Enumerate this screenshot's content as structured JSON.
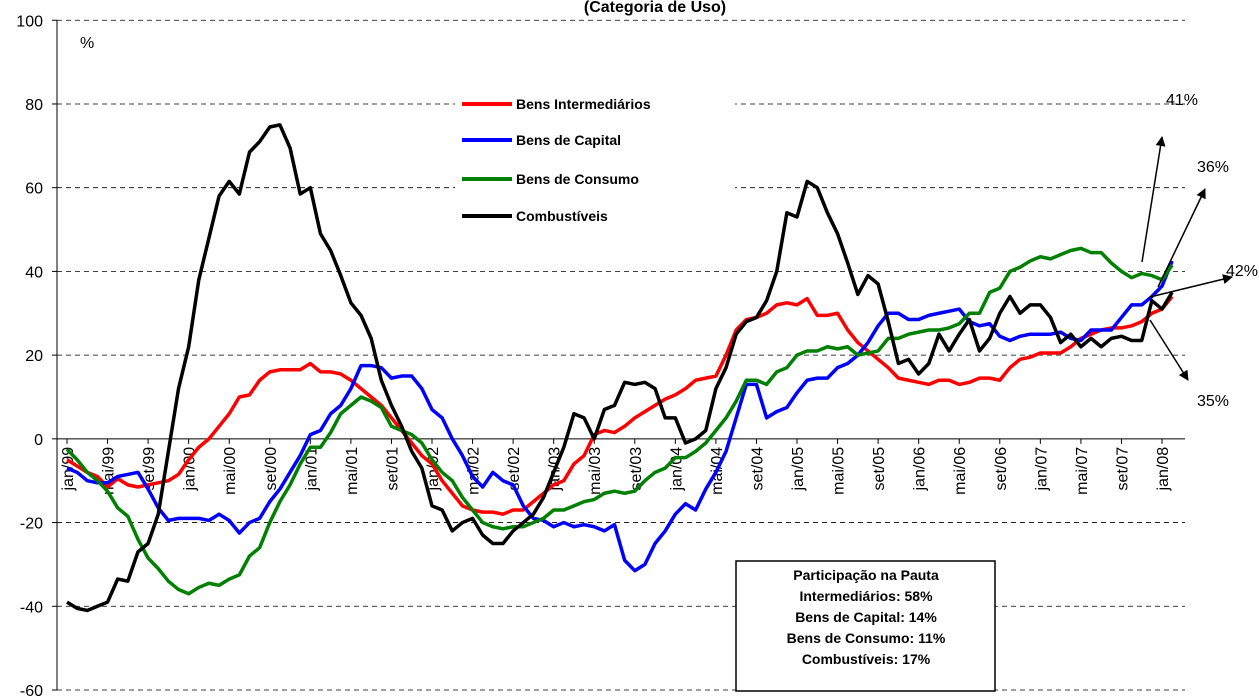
{
  "chart_data": {
    "type": "line",
    "title": "(Categoria de Uso)",
    "y_label": "%",
    "categories": [
      "jan/99",
      null,
      null,
      null,
      "mai/99",
      null,
      null,
      null,
      "set/99",
      null,
      null,
      null,
      "jan/00",
      null,
      null,
      null,
      "mai/00",
      null,
      null,
      null,
      "set/00",
      null,
      null,
      null,
      "jan/01",
      null,
      null,
      null,
      "mai/01",
      null,
      null,
      null,
      "set/01",
      null,
      null,
      null,
      "jan/02",
      null,
      null,
      null,
      "mai/02",
      null,
      null,
      null,
      "set/02",
      null,
      null,
      null,
      "jan/03",
      null,
      null,
      null,
      "mai/03",
      null,
      null,
      null,
      "set/03",
      null,
      null,
      null,
      "jan/04",
      null,
      null,
      null,
      "mai/04",
      null,
      null,
      null,
      "set/04",
      null,
      null,
      null,
      "jan/05",
      null,
      null,
      null,
      "mai/05",
      null,
      null,
      null,
      "set/05",
      null,
      null,
      null,
      "jan/06",
      null,
      null,
      null,
      "mai/06",
      null,
      null,
      null,
      "set/06",
      null,
      null,
      null,
      "jan/07",
      null,
      null,
      null,
      "mai/07",
      null,
      null,
      null,
      "set/07",
      null,
      null,
      null,
      "jan/08",
      null
    ],
    "series": [
      {
        "name": "Bens Intermediários",
        "color": "#ff0000",
        "values": [
          -5,
          -6.5,
          -8,
          -9,
          -11.5,
          -9.5,
          -11,
          -11.5,
          -11,
          -10.5,
          -10,
          -8.5,
          -5,
          -2,
          0,
          3,
          6,
          10,
          10.5,
          14,
          16,
          16.5,
          16.5,
          16.5,
          18,
          16,
          16,
          15.5,
          14,
          12,
          10,
          8,
          5,
          2,
          -1,
          -4,
          -6,
          -10,
          -13,
          -16,
          -17,
          -17.5,
          -17.5,
          -18,
          -17,
          -17,
          -15,
          -13,
          -11,
          -10,
          -6,
          -4,
          1,
          2,
          1.5,
          3,
          5,
          6.5,
          8,
          9.5,
          10.5,
          12,
          14,
          14.5,
          15,
          20,
          26,
          28.5,
          29,
          30,
          32,
          32.5,
          32,
          33.5,
          29.5,
          29.5,
          30,
          26,
          23,
          21,
          19,
          17,
          14.5,
          14,
          13.5,
          13,
          14,
          14,
          13,
          13.5,
          14.5,
          14.5,
          14,
          17,
          19,
          19.5,
          20.5,
          20.5,
          20.5,
          22,
          24,
          25,
          26,
          26.5,
          26.5,
          27,
          28,
          30,
          31,
          34
        ]
      },
      {
        "name": "Bens de Capital",
        "color": "#0000ff",
        "values": [
          -7,
          -8,
          -10,
          -10.5,
          -10.5,
          -9,
          -8.5,
          -8,
          -12,
          -16.5,
          -19.5,
          -19,
          -19,
          -19,
          -19.5,
          -18,
          -19.5,
          -22.5,
          -20,
          -19,
          -15,
          -12,
          -8,
          -4,
          1,
          2,
          6,
          8,
          12,
          17.5,
          17.5,
          17,
          14.5,
          15,
          15,
          12,
          7,
          5,
          0,
          -4,
          -9,
          -11.5,
          -8,
          -10,
          -11,
          -16,
          -19,
          -19.5,
          -21,
          -20,
          -21,
          -20.5,
          -21,
          -22,
          -20.5,
          -29,
          -31.5,
          -30,
          -25,
          -22,
          -18,
          -15.5,
          -17,
          -12,
          -8,
          -3,
          5,
          13,
          13,
          5,
          6.5,
          7.5,
          11,
          14,
          14.5,
          14.5,
          17,
          18,
          20,
          23,
          27,
          30,
          30,
          28.5,
          28.5,
          29.5,
          30,
          30.5,
          31,
          28,
          27,
          27.5,
          24.5,
          23.5,
          24.5,
          25,
          25,
          25,
          25.5,
          24,
          23.5,
          26,
          26,
          26,
          29,
          32,
          32,
          34,
          36.5,
          42.5
        ]
      },
      {
        "name": "Bens de Consumo",
        "color": "#008000",
        "values": [
          -2.5,
          -5,
          -8,
          -10,
          -12.5,
          -16.5,
          -18.5,
          -24,
          -28.5,
          -31,
          -34,
          -36,
          -37,
          -35.5,
          -34.5,
          -35,
          -33.5,
          -32.5,
          -28,
          -26,
          -20,
          -15,
          -11,
          -6,
          -2,
          -2,
          1.5,
          6,
          8,
          10,
          9,
          7.5,
          3,
          2,
          1,
          -1,
          -5,
          -8,
          -10,
          -14,
          -17,
          -20,
          -21,
          -21.5,
          -21,
          -21,
          -20,
          -19,
          -17,
          -17,
          -16,
          -15,
          -14.5,
          -13,
          -12.5,
          -13,
          -12.5,
          -10,
          -8,
          -7,
          -4.5,
          -4.5,
          -3,
          -1,
          2,
          5,
          9,
          14,
          14,
          13,
          16,
          17,
          20,
          21,
          21,
          22,
          21.5,
          22,
          20,
          20.5,
          21,
          24,
          24,
          25,
          25.5,
          26,
          26,
          26.5,
          27.5,
          30,
          30,
          35,
          36,
          40,
          41,
          42.5,
          43.5,
          43,
          44,
          45,
          45.5,
          44.5,
          44.5,
          42,
          40,
          38.5,
          39.5,
          39,
          38,
          41.5
        ]
      },
      {
        "name": "Combustíveis",
        "color": "#000000",
        "values": [
          -39,
          -40.5,
          -41,
          -40,
          -39,
          -33.5,
          -34,
          -27,
          -25,
          -18,
          -3,
          12,
          22,
          38,
          48,
          58,
          61.5,
          58.5,
          68.5,
          71,
          74.5,
          75,
          69.5,
          58.5,
          60,
          49,
          45,
          39,
          32.5,
          29.5,
          24,
          14,
          8,
          3,
          -3,
          -7,
          -16,
          -17,
          -22,
          -20,
          -19,
          -23,
          -25,
          -25,
          -22,
          -20,
          -18,
          -14,
          -8,
          -2,
          6,
          5,
          0,
          7,
          8,
          13.5,
          13,
          13.5,
          12,
          5,
          5,
          -1,
          0,
          2,
          12,
          17,
          25,
          28,
          29,
          33,
          40,
          54,
          53,
          61.5,
          60,
          54,
          49,
          42,
          34.5,
          39,
          37,
          28,
          18,
          19,
          15.5,
          18,
          25,
          21,
          25,
          28.5,
          21,
          24,
          30,
          34,
          30,
          32,
          32,
          29,
          23,
          25,
          22,
          24,
          22,
          24,
          24.5,
          23.5,
          23.5,
          33,
          31,
          35
        ]
      }
    ],
    "ylim": [
      -60,
      100
    ],
    "yticks": [
      -60,
      -40,
      -20,
      0,
      20,
      40,
      60,
      80,
      100
    ],
    "grid": true,
    "annotations": [
      "41%",
      "36%",
      "42%",
      "35%"
    ],
    "info_box": {
      "title": "Participação na Pauta",
      "lines": [
        "Intermediários: 58%",
        "Bens de Capital: 14%",
        "Bens de Consumo: 11%",
        "Combustíveis: 17%"
      ]
    }
  }
}
